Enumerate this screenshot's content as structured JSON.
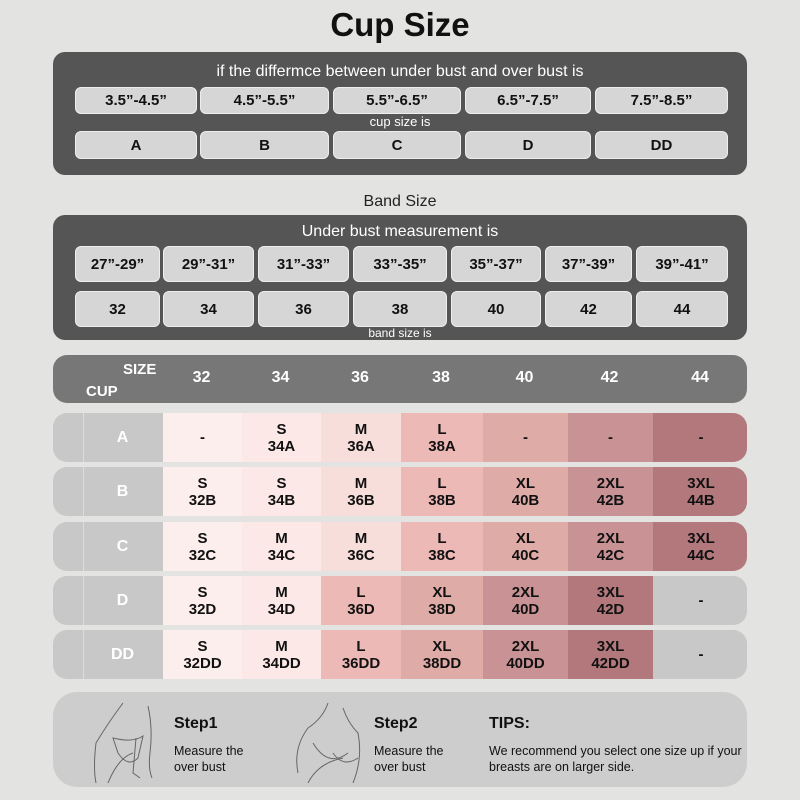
{
  "title": "Cup Size",
  "cup": {
    "caption": "if the differmce between under bust and over bust is",
    "ranges": [
      "3.5”-4.5”",
      "4.5”-5.5”",
      "5.5”-6.5”",
      "6.5”-7.5”",
      "7.5”-8.5”"
    ],
    "mid_caption": "cup size is",
    "sizes": [
      "A",
      "B",
      "C",
      "D",
      "DD"
    ]
  },
  "band_title": "Band Size",
  "band": {
    "caption": "Under bust measurement is",
    "ranges": [
      "27”-29”",
      "29”-31”",
      "31”-33”",
      "33”-35”",
      "35”-37”",
      "37”-39”",
      "39”-41”"
    ],
    "sizes": [
      "32",
      "34",
      "36",
      "38",
      "40",
      "42",
      "44"
    ],
    "bottom_caption": "band size is"
  },
  "table": {
    "size_label": "SIZE",
    "cup_label": "CUP",
    "columns": [
      "32",
      "34",
      "36",
      "38",
      "40",
      "42",
      "44"
    ],
    "palette": [
      "#fdeeee",
      "#fbe8e7",
      "#f8dedb",
      "#edb9b6",
      "#dfaba6",
      "#c99396",
      "#b2787c",
      "#c8c8c8"
    ],
    "rows": [
      {
        "cup": "A",
        "cells": [
          [
            "-",
            ""
          ],
          [
            "S",
            "34A"
          ],
          [
            "M",
            "36A"
          ],
          [
            "L",
            "38A"
          ],
          [
            "-",
            ""
          ],
          [
            "-",
            ""
          ],
          [
            "-",
            ""
          ]
        ],
        "colors": [
          0,
          1,
          2,
          3,
          4,
          5,
          6
        ]
      },
      {
        "cup": "B",
        "cells": [
          [
            "S",
            "32B"
          ],
          [
            "S",
            "34B"
          ],
          [
            "M",
            "36B"
          ],
          [
            "L",
            "38B"
          ],
          [
            "XL",
            "40B"
          ],
          [
            "2XL",
            "42B"
          ],
          [
            "3XL",
            "44B"
          ]
        ],
        "colors": [
          0,
          1,
          2,
          3,
          4,
          5,
          6
        ]
      },
      {
        "cup": "C",
        "cells": [
          [
            "S",
            "32C"
          ],
          [
            "M",
            "34C"
          ],
          [
            "M",
            "36C"
          ],
          [
            "L",
            "38C"
          ],
          [
            "XL",
            "40C"
          ],
          [
            "2XL",
            "42C"
          ],
          [
            "3XL",
            "44C"
          ]
        ],
        "colors": [
          0,
          1,
          2,
          3,
          4,
          5,
          6
        ]
      },
      {
        "cup": "D",
        "cells": [
          [
            "S",
            "32D"
          ],
          [
            "M",
            "34D"
          ],
          [
            "L",
            "36D"
          ],
          [
            "XL",
            "38D"
          ],
          [
            "2XL",
            "40D"
          ],
          [
            "3XL",
            "42D"
          ],
          [
            "-",
            ""
          ]
        ],
        "colors": [
          0,
          1,
          3,
          4,
          5,
          6,
          7
        ]
      },
      {
        "cup": "DD",
        "cells": [
          [
            "S",
            "32DD"
          ],
          [
            "M",
            "34DD"
          ],
          [
            "L",
            "36DD"
          ],
          [
            "XL",
            "38DD"
          ],
          [
            "2XL",
            "40DD"
          ],
          [
            "3XL",
            "42DD"
          ],
          [
            "-",
            ""
          ]
        ],
        "colors": [
          0,
          1,
          3,
          4,
          5,
          6,
          7
        ]
      }
    ]
  },
  "tips": {
    "step1_title": "Step1",
    "step1_text": "Measure the over bust",
    "step2_title": "Step2",
    "step2_text": "Measure the over bust",
    "tips_title": "TIPS:",
    "tips_text": "We recommend you select one size up if your breasts are on larger side."
  }
}
